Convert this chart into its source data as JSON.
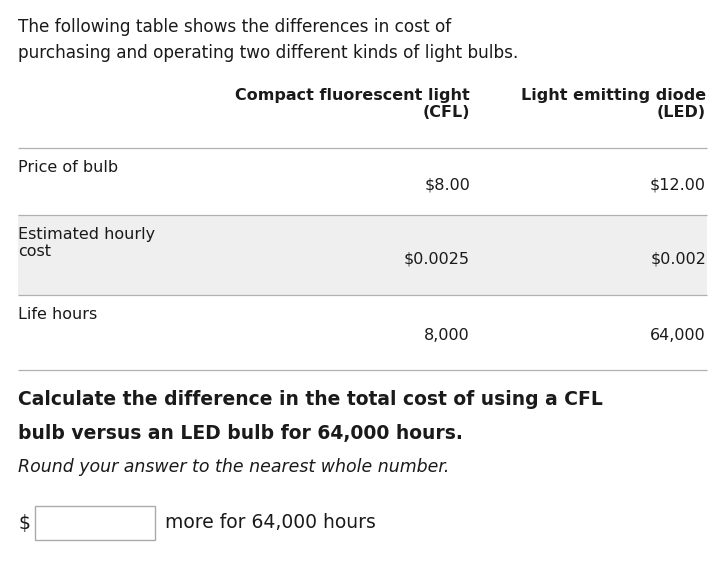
{
  "intro_line1": "The following table shows the differences in cost of",
  "intro_line2": "purchasing and operating two different kinds of light bulbs.",
  "header_cfl": "Compact fluorescent light\n(CFL)",
  "header_led": "Light emitting diode\n(LED)",
  "rows": [
    {
      "label": "Price of bulb",
      "cfl": "$8.00",
      "led": "$12.00",
      "shaded": false
    },
    {
      "label": "Estimated hourly\ncost",
      "cfl": "$0.0025",
      "led": "$0.002",
      "shaded": true
    },
    {
      "label": "Life hours",
      "cfl": "8,000",
      "led": "64,000",
      "shaded": false
    }
  ],
  "q_bold1": "Calculate the difference in the total cost of using a CFL",
  "q_bold2a": "bulb versus an LED bulb for ",
  "q_bold2b": "64,000 hours.",
  "q_italic": "Round your answer to the nearest whole number.",
  "ans_dollar": "$",
  "ans_suffix": "more for 64,000 hours",
  "bg": "#ffffff",
  "fg": "#1a1a1a",
  "shade": "#efefef",
  "line_color": "#b0b0b0",
  "box_edge": "#aaaaaa"
}
